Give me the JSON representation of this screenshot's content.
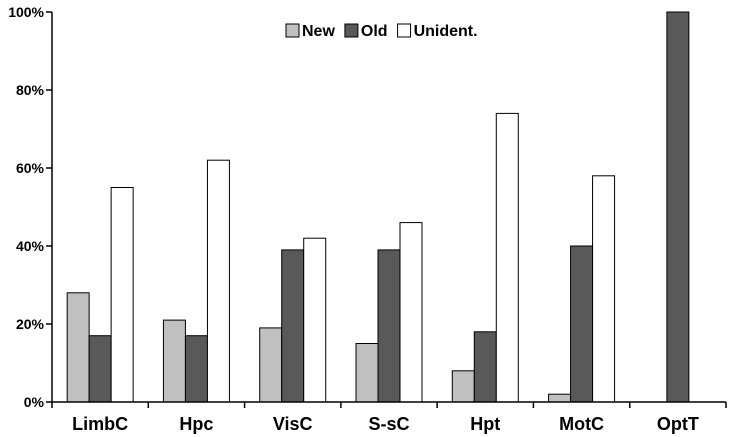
{
  "chart_data": {
    "type": "bar",
    "title": "",
    "xlabel": "",
    "ylabel": "",
    "ylim": [
      0,
      100
    ],
    "y_ticks": [
      "0%",
      "20%",
      "40%",
      "60%",
      "80%",
      "100%"
    ],
    "y_tick_values": [
      0,
      20,
      40,
      60,
      80,
      100
    ],
    "categories": [
      "LimbC",
      "Hpc",
      "VisC",
      "S-sC",
      "Hpt",
      "MotC",
      "OptT"
    ],
    "series": [
      {
        "name": "New",
        "color": "#c0c0c0",
        "values": [
          28,
          21,
          19,
          15,
          8,
          2,
          0
        ]
      },
      {
        "name": "Old",
        "color": "#595959",
        "values": [
          17,
          17,
          39,
          39,
          18,
          40,
          100
        ]
      },
      {
        "name": "Unident.",
        "color": "#ffffff",
        "values": [
          55,
          62,
          42,
          46,
          74,
          58,
          0
        ]
      }
    ],
    "legend_placement": "top-center",
    "grid": false
  }
}
